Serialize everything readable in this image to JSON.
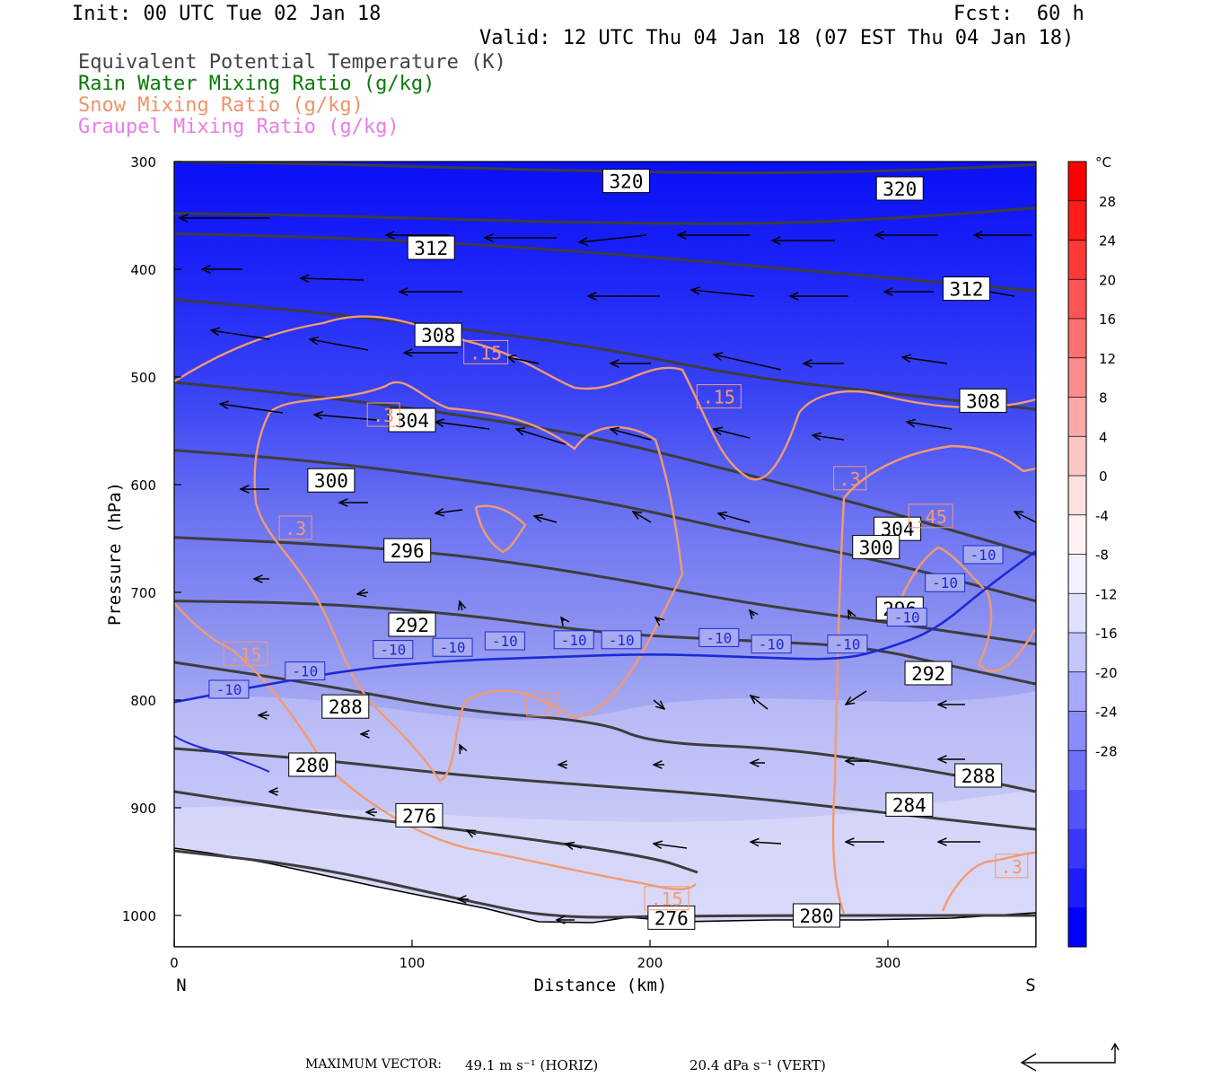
{
  "header": {
    "init": "Init: 00 UTC Tue 02 Jan 18",
    "fcst": "Fcst:  60 h",
    "valid": "Valid: 12 UTC Thu 04 Jan 18 (07 EST Thu 04 Jan 18)"
  },
  "legend": [
    {
      "label": "Equivalent Potential Temperature (K)",
      "color": "#444444"
    },
    {
      "label": "Rain Water Mixing Ratio (g/kg)",
      "color": "#0a7a0a"
    },
    {
      "label": "Snow Mixing Ratio (g/kg)",
      "color": "#f0926a"
    },
    {
      "label": "Graupel Mixing Ratio (g/kg)",
      "color": "#e87de8"
    }
  ],
  "footer": {
    "max_vector_label": "MAXIMUM VECTOR:",
    "horiz": "49.1 m s⁻¹ (HORIZ)",
    "vert": "20.4 dPa s⁻¹ (VERT)"
  },
  "chart_data": {
    "type": "heatmap",
    "xlabel": "Distance (km)",
    "ylabel": "Pressure (hPa)",
    "x_ticks": [
      0,
      100,
      200,
      300
    ],
    "x_ends": [
      "N",
      "S"
    ],
    "xlim": [
      0,
      362
    ],
    "y_ticks": [
      300,
      400,
      500,
      600,
      700,
      800,
      900,
      1000
    ],
    "ylim": [
      300,
      1030
    ],
    "colorbar": {
      "unit": "°C",
      "tick_labels": [
        28,
        24,
        20,
        16,
        12,
        8,
        4,
        0,
        -4,
        -8,
        -12,
        -16,
        -20,
        -24,
        -28
      ],
      "bins": [
        "#ff0000",
        "#ff1c1c",
        "#ff3838",
        "#ff5454",
        "#ff7070",
        "#ff8c8c",
        "#ffa8a8",
        "#ffc4c4",
        "#ffe0e0",
        "#fff2f2",
        "#f2f2ff",
        "#e0e0ff",
        "#c4c4ff",
        "#a8a8ff",
        "#8c8cff",
        "#7070ff",
        "#5454ff",
        "#3838ff",
        "#1c1cff",
        "#0000ff"
      ]
    },
    "theta_e_contours": [
      {
        "value": 320,
        "points": [
          [
            0,
            300
          ],
          [
            60,
            302
          ],
          [
            120,
            306
          ],
          [
            180,
            309
          ],
          [
            240,
            311
          ],
          [
            300,
            309
          ],
          [
            362,
            303
          ]
        ],
        "labels": [
          [
            190,
            318
          ],
          [
            305,
            325
          ]
        ]
      },
      {
        "value": 316,
        "points": [
          [
            0,
            348
          ],
          [
            60,
            350
          ],
          [
            120,
            354
          ],
          [
            180,
            357
          ],
          [
            250,
            358
          ],
          [
            310,
            352
          ],
          [
            362,
            343
          ]
        ],
        "labels": []
      },
      {
        "value": 312,
        "points": [
          [
            0,
            367
          ],
          [
            60,
            370
          ],
          [
            120,
            376
          ],
          [
            180,
            385
          ],
          [
            250,
            398
          ],
          [
            310,
            410
          ],
          [
            362,
            420
          ]
        ],
        "labels": [
          [
            108,
            380
          ],
          [
            333,
            418
          ]
        ]
      },
      {
        "value": 308,
        "points": [
          [
            0,
            428
          ],
          [
            60,
            440
          ],
          [
            120,
            455
          ],
          [
            180,
            473
          ],
          [
            240,
            500
          ],
          [
            300,
            515
          ],
          [
            362,
            530
          ]
        ],
        "labels": [
          [
            111,
            461
          ],
          [
            340,
            522
          ]
        ]
      },
      {
        "value": 304,
        "points": [
          [
            0,
            505
          ],
          [
            60,
            518
          ],
          [
            120,
            535
          ],
          [
            180,
            557
          ],
          [
            240,
            590
          ],
          [
            300,
            625
          ],
          [
            362,
            665
          ]
        ],
        "labels": [
          [
            100,
            540
          ],
          [
            304,
            641
          ]
        ]
      },
      {
        "value": 300,
        "points": [
          [
            0,
            568
          ],
          [
            60,
            578
          ],
          [
            120,
            595
          ],
          [
            180,
            615
          ],
          [
            240,
            645
          ],
          [
            300,
            672
          ],
          [
            362,
            708
          ]
        ],
        "labels": [
          [
            66,
            596
          ],
          [
            295,
            658
          ]
        ]
      },
      {
        "value": 296,
        "points": [
          [
            0,
            649
          ],
          [
            60,
            655
          ],
          [
            120,
            665
          ],
          [
            180,
            685
          ],
          [
            240,
            710
          ],
          [
            300,
            728
          ],
          [
            362,
            748
          ]
        ],
        "labels": [
          [
            98,
            661
          ],
          [
            305,
            715
          ]
        ]
      },
      {
        "value": 292,
        "points": [
          [
            0,
            708
          ],
          [
            60,
            710
          ],
          [
            120,
            720
          ],
          [
            180,
            738
          ],
          [
            240,
            745
          ],
          [
            290,
            750
          ],
          [
            330,
            770
          ],
          [
            362,
            785
          ]
        ],
        "labels": [
          [
            100,
            730
          ],
          [
            317,
            775
          ]
        ]
      },
      {
        "value": 288,
        "points": [
          [
            0,
            765
          ],
          [
            60,
            785
          ],
          [
            120,
            810
          ],
          [
            180,
            820
          ],
          [
            200,
            840
          ],
          [
            260,
            845
          ],
          [
            330,
            870
          ],
          [
            362,
            885
          ]
        ],
        "labels": [
          [
            72,
            806
          ],
          [
            338,
            870
          ]
        ]
      },
      {
        "value": 284,
        "points": [
          [
            0,
            845
          ],
          [
            60,
            855
          ],
          [
            120,
            870
          ],
          [
            180,
            880
          ],
          [
            240,
            890
          ],
          [
            300,
            905
          ],
          [
            362,
            920
          ]
        ],
        "labels": [
          [
            309,
            897
          ]
        ]
      },
      {
        "value": 280,
        "points": [
          [
            0,
            885
          ],
          [
            60,
            905
          ],
          [
            120,
            920
          ],
          [
            200,
            945
          ],
          [
            220,
            960
          ]
        ],
        "labels": [
          [
            58,
            860
          ],
          [
            270,
            1000
          ]
        ]
      },
      {
        "value": 276,
        "points": [
          [
            0,
            940
          ],
          [
            60,
            955
          ],
          [
            120,
            985
          ],
          [
            160,
            1003
          ],
          [
            220,
            1000
          ],
          [
            362,
            1000
          ]
        ],
        "labels": [
          [
            103,
            907
          ],
          [
            209,
            1002
          ]
        ]
      }
    ],
    "snow_contours": [
      {
        "value": 0.15,
        "labels": [
          [
            131,
            477
          ],
          [
            229,
            518
          ],
          [
            30,
            757
          ],
          [
            207,
            984
          ]
        ]
      },
      {
        "value": 0.3,
        "labels": [
          [
            88,
            535
          ],
          [
            51,
            640
          ],
          [
            284,
            594
          ],
          [
            155,
            804
          ],
          [
            352,
            954
          ]
        ]
      },
      {
        "value": 0.45,
        "labels": [
          [
            318,
            629
          ]
        ]
      }
    ],
    "temperature_contour_minus10": {
      "value": -10,
      "points": [
        [
          0,
          802
        ],
        [
          40,
          785
        ],
        [
          80,
          770
        ],
        [
          120,
          763
        ],
        [
          160,
          760
        ],
        [
          200,
          757
        ],
        [
          240,
          760
        ],
        [
          280,
          763
        ],
        [
          300,
          752
        ],
        [
          320,
          735
        ],
        [
          340,
          698
        ],
        [
          362,
          662
        ]
      ],
      "labels": [
        [
          23,
          790
        ],
        [
          55,
          773
        ],
        [
          92,
          753
        ],
        [
          117,
          751
        ],
        [
          139,
          745
        ],
        [
          168,
          744
        ],
        [
          188,
          744
        ],
        [
          229,
          742
        ],
        [
          251,
          748
        ],
        [
          283,
          748
        ],
        [
          308,
          723
        ],
        [
          324,
          691
        ],
        [
          340,
          665
        ]
      ]
    }
  }
}
